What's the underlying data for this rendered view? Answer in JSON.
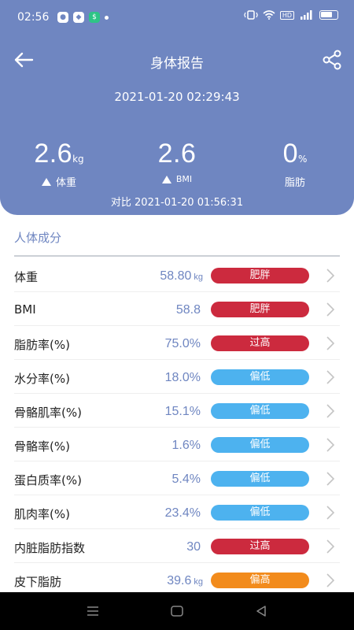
{
  "status_bar": {
    "time": "02:56",
    "right_indicator": "HD"
  },
  "nav": {
    "title": "身体报告",
    "back_icon": "arrow-left-icon",
    "share_icon": "share-icon"
  },
  "report": {
    "datetime": "2021-01-20 02:29:43",
    "compare_text": "对比 2021-01-20 01:56:31"
  },
  "metrics": [
    {
      "value": "2.6",
      "unit": "kg",
      "label": "体重",
      "trend": "up"
    },
    {
      "value": "2.6",
      "unit": "",
      "label": "BMI",
      "trend": "up"
    },
    {
      "value": "0",
      "unit": "%",
      "label": "脂肪",
      "trend": "none"
    }
  ],
  "section": {
    "title": "人体成分"
  },
  "rows": [
    {
      "name": "体重",
      "value": "58.80",
      "unit": "kg",
      "tag": "肥胖",
      "tag_color": "#cc2a3e"
    },
    {
      "name": "BMI",
      "value": "58.8",
      "unit": "",
      "tag": "肥胖",
      "tag_color": "#cc2a3e"
    },
    {
      "name": "脂肪率(%)",
      "value": "75.0%",
      "unit": "",
      "tag": "过高",
      "tag_color": "#cc2a3e"
    },
    {
      "name": "水分率(%)",
      "value": "18.0%",
      "unit": "",
      "tag": "偏低",
      "tag_color": "#4db2ef"
    },
    {
      "name": "骨骼肌率(%)",
      "value": "15.1%",
      "unit": "",
      "tag": "偏低",
      "tag_color": "#4db2ef"
    },
    {
      "name": "骨骼率(%)",
      "value": "1.6%",
      "unit": "",
      "tag": "偏低",
      "tag_color": "#4db2ef"
    },
    {
      "name": "蛋白质率(%)",
      "value": "5.4%",
      "unit": "",
      "tag": "偏低",
      "tag_color": "#4db2ef"
    },
    {
      "name": "肌肉率(%)",
      "value": "23.4%",
      "unit": "",
      "tag": "偏低",
      "tag_color": "#4db2ef"
    },
    {
      "name": "内脏脂肪指数",
      "value": "30",
      "unit": "",
      "tag": "过高",
      "tag_color": "#cc2a3e"
    },
    {
      "name": "皮下脂肪",
      "value": "39.6",
      "unit": "kg",
      "tag": "偏高",
      "tag_color": "#f28b1c"
    }
  ],
  "colors": {
    "header_bg": "#6f86c1",
    "accent": "#6f86c1",
    "danger": "#cc2a3e",
    "low": "#4db2ef",
    "warn": "#f28b1c"
  }
}
